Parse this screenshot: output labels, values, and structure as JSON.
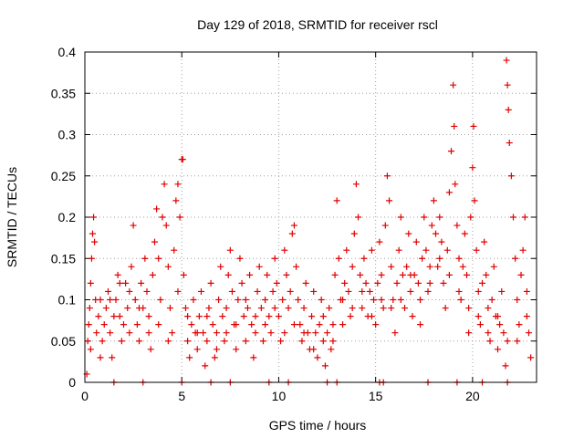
{
  "chart_data": {
    "type": "scatter",
    "title": "Day 129 of 2018, SRMTID for receiver rscl",
    "xlabel": "GPS time / hours",
    "ylabel": "SRMTID / TECUs",
    "xlim": [
      0,
      23.3
    ],
    "ylim": [
      0,
      0.4
    ],
    "x_ticks": [
      0,
      5,
      10,
      15,
      20
    ],
    "x_tick_labels": [
      "0",
      "5",
      "10",
      "15",
      "20"
    ],
    "y_ticks": [
      0,
      0.05,
      0.1,
      0.15,
      0.2,
      0.25,
      0.3,
      0.35,
      0.4
    ],
    "y_tick_labels": [
      "0",
      "0.05",
      "0.1",
      "0.15",
      "0.2",
      "0.25",
      "0.3",
      "0.35",
      "0.4"
    ],
    "grid": true,
    "marker": "plus",
    "color": "#e00000",
    "points": [
      [
        0.1,
        0.01
      ],
      [
        0.15,
        0.05
      ],
      [
        0.2,
        0.07
      ],
      [
        0.25,
        0.09
      ],
      [
        0.3,
        0.12
      ],
      [
        0.35,
        0.15
      ],
      [
        0.4,
        0.18
      ],
      [
        0.45,
        0.2
      ],
      [
        0.5,
        0.17
      ],
      [
        0.55,
        0.1
      ],
      [
        0.6,
        0.06
      ],
      [
        0.7,
        0.08
      ],
      [
        0.8,
        0.1
      ],
      [
        0.9,
        0.05
      ],
      [
        1.0,
        0.07
      ],
      [
        1.1,
        0.09
      ],
      [
        1.2,
        0.11
      ],
      [
        1.3,
        0.06
      ],
      [
        1.4,
        0.03
      ],
      [
        1.5,
        0.08
      ],
      [
        1.6,
        0.1
      ],
      [
        1.7,
        0.13
      ],
      [
        1.8,
        0.08
      ],
      [
        1.9,
        0.05
      ],
      [
        2.0,
        0.07
      ],
      [
        2.1,
        0.12
      ],
      [
        2.2,
        0.09
      ],
      [
        2.3,
        0.06
      ],
      [
        2.4,
        0.14
      ],
      [
        2.5,
        0.19
      ],
      [
        2.6,
        0.1
      ],
      [
        2.7,
        0.07
      ],
      [
        2.8,
        0.05
      ],
      [
        2.9,
        0.12
      ],
      [
        3.0,
        0.09
      ],
      [
        3.1,
        0.15
      ],
      [
        3.2,
        0.11
      ],
      [
        3.3,
        0.08
      ],
      [
        3.4,
        0.04
      ],
      [
        3.5,
        0.13
      ],
      [
        3.6,
        0.17
      ],
      [
        3.7,
        0.21
      ],
      [
        3.8,
        0.15
      ],
      [
        3.9,
        0.1
      ],
      [
        4.0,
        0.2
      ],
      [
        4.1,
        0.24
      ],
      [
        4.2,
        0.19
      ],
      [
        4.3,
        0.14
      ],
      [
        4.4,
        0.09
      ],
      [
        4.5,
        0.06
      ],
      [
        4.6,
        0.16
      ],
      [
        4.7,
        0.22
      ],
      [
        4.8,
        0.24
      ],
      [
        4.9,
        0.2
      ],
      [
        5.0,
        0.27
      ],
      [
        5.05,
        0.27
      ],
      [
        5.1,
        0.13
      ],
      [
        5.2,
        0.09
      ],
      [
        5.3,
        0.05
      ],
      [
        5.4,
        0.03
      ],
      [
        5.5,
        0.07
      ],
      [
        5.6,
        0.1
      ],
      [
        5.7,
        0.06
      ],
      [
        5.8,
        0.04
      ],
      [
        5.9,
        0.08
      ],
      [
        6.0,
        0.11
      ],
      [
        6.1,
        0.06
      ],
      [
        6.2,
        0.02
      ],
      [
        6.3,
        0.05
      ],
      [
        6.4,
        0.09
      ],
      [
        6.5,
        0.12
      ],
      [
        6.6,
        0.07
      ],
      [
        6.7,
        0.03
      ],
      [
        6.8,
        0.06
      ],
      [
        6.9,
        0.1
      ],
      [
        7.0,
        0.14
      ],
      [
        7.1,
        0.08
      ],
      [
        7.2,
        0.05
      ],
      [
        7.3,
        0.09
      ],
      [
        7.4,
        0.13
      ],
      [
        7.5,
        0.16
      ],
      [
        7.6,
        0.11
      ],
      [
        7.7,
        0.07
      ],
      [
        7.8,
        0.04
      ],
      [
        7.9,
        0.1
      ],
      [
        8.0,
        0.15
      ],
      [
        8.1,
        0.12
      ],
      [
        8.2,
        0.08
      ],
      [
        8.3,
        0.05
      ],
      [
        8.4,
        0.09
      ],
      [
        8.5,
        0.13
      ],
      [
        8.6,
        0.07
      ],
      [
        8.7,
        0.03
      ],
      [
        8.8,
        0.06
      ],
      [
        8.9,
        0.11
      ],
      [
        9.0,
        0.14
      ],
      [
        9.1,
        0.09
      ],
      [
        9.2,
        0.05
      ],
      [
        9.3,
        0.1
      ],
      [
        9.4,
        0.13
      ],
      [
        9.5,
        0.08
      ],
      [
        9.6,
        0.06
      ],
      [
        9.7,
        0.11
      ],
      [
        9.8,
        0.15
      ],
      [
        9.9,
        0.12
      ],
      [
        10.0,
        0.08
      ],
      [
        10.1,
        0.05
      ],
      [
        10.2,
        0.1
      ],
      [
        10.3,
        0.16
      ],
      [
        10.4,
        0.13
      ],
      [
        10.5,
        0.09
      ],
      [
        10.6,
        0.11
      ],
      [
        10.7,
        0.18
      ],
      [
        10.8,
        0.19
      ],
      [
        10.9,
        0.14
      ],
      [
        11.0,
        0.1
      ],
      [
        11.1,
        0.07
      ],
      [
        11.2,
        0.05
      ],
      [
        11.3,
        0.09
      ],
      [
        11.4,
        0.12
      ],
      [
        11.5,
        0.06
      ],
      [
        11.6,
        0.04
      ],
      [
        11.7,
        0.08
      ],
      [
        11.8,
        0.11
      ],
      [
        11.9,
        0.06
      ],
      [
        12.0,
        0.03
      ],
      [
        12.1,
        0.07
      ],
      [
        12.2,
        0.1
      ],
      [
        12.3,
        0.05
      ],
      [
        12.4,
        0.02
      ],
      [
        12.5,
        0.06
      ],
      [
        12.6,
        0.09
      ],
      [
        12.7,
        0.04
      ],
      [
        12.8,
        0.07
      ],
      [
        12.9,
        0.13
      ],
      [
        13.0,
        0.22
      ],
      [
        13.1,
        0.15
      ],
      [
        13.2,
        0.1
      ],
      [
        13.3,
        0.07
      ],
      [
        13.4,
        0.12
      ],
      [
        13.5,
        0.16
      ],
      [
        13.6,
        0.11
      ],
      [
        13.7,
        0.08
      ],
      [
        13.8,
        0.14
      ],
      [
        13.9,
        0.18
      ],
      [
        14.0,
        0.24
      ],
      [
        14.1,
        0.2
      ],
      [
        14.2,
        0.13
      ],
      [
        14.3,
        0.09
      ],
      [
        14.4,
        0.15
      ],
      [
        14.5,
        0.12
      ],
      [
        14.6,
        0.08
      ],
      [
        14.7,
        0.11
      ],
      [
        14.8,
        0.16
      ],
      [
        14.9,
        0.1
      ],
      [
        15.0,
        0.07
      ],
      [
        15.1,
        0.12
      ],
      [
        15.2,
        0.17
      ],
      [
        15.3,
        0.13
      ],
      [
        15.4,
        0.09
      ],
      [
        15.5,
        0.19
      ],
      [
        15.6,
        0.25
      ],
      [
        15.7,
        0.22
      ],
      [
        15.8,
        0.14
      ],
      [
        15.9,
        0.1
      ],
      [
        16.0,
        0.06
      ],
      [
        16.1,
        0.12
      ],
      [
        16.2,
        0.16
      ],
      [
        16.3,
        0.2
      ],
      [
        16.4,
        0.13
      ],
      [
        16.5,
        0.09
      ],
      [
        16.6,
        0.14
      ],
      [
        16.7,
        0.18
      ],
      [
        16.8,
        0.11
      ],
      [
        16.9,
        0.08
      ],
      [
        17.0,
        0.13
      ],
      [
        17.1,
        0.17
      ],
      [
        17.2,
        0.12
      ],
      [
        17.3,
        0.07
      ],
      [
        17.4,
        0.15
      ],
      [
        17.5,
        0.2
      ],
      [
        17.6,
        0.16
      ],
      [
        17.7,
        0.11
      ],
      [
        17.8,
        0.14
      ],
      [
        17.9,
        0.19
      ],
      [
        18.0,
        0.22
      ],
      [
        18.1,
        0.18
      ],
      [
        18.2,
        0.14
      ],
      [
        18.3,
        0.2
      ],
      [
        18.4,
        0.17
      ],
      [
        18.5,
        0.12
      ],
      [
        18.6,
        0.09
      ],
      [
        18.7,
        0.16
      ],
      [
        18.8,
        0.23
      ],
      [
        18.9,
        0.28
      ],
      [
        19.0,
        0.36
      ],
      [
        19.05,
        0.31
      ],
      [
        19.1,
        0.24
      ],
      [
        19.2,
        0.19
      ],
      [
        19.3,
        0.15
      ],
      [
        19.4,
        0.1
      ],
      [
        19.5,
        0.14
      ],
      [
        19.6,
        0.18
      ],
      [
        19.7,
        0.13
      ],
      [
        19.8,
        0.09
      ],
      [
        19.9,
        0.2
      ],
      [
        20.0,
        0.26
      ],
      [
        20.05,
        0.31
      ],
      [
        20.1,
        0.22
      ],
      [
        20.2,
        0.16
      ],
      [
        20.3,
        0.11
      ],
      [
        20.4,
        0.07
      ],
      [
        20.5,
        0.12
      ],
      [
        20.6,
        0.17
      ],
      [
        20.7,
        0.13
      ],
      [
        20.8,
        0.09
      ],
      [
        20.9,
        0.05
      ],
      [
        21.0,
        0.1
      ],
      [
        21.1,
        0.14
      ],
      [
        21.2,
        0.08
      ],
      [
        21.3,
        0.04
      ],
      [
        21.4,
        0.07
      ],
      [
        21.5,
        0.11
      ],
      [
        21.6,
        0.06
      ],
      [
        21.7,
        0.02
      ],
      [
        21.75,
        0.39
      ],
      [
        21.8,
        0.36
      ],
      [
        21.85,
        0.33
      ],
      [
        21.9,
        0.29
      ],
      [
        22.0,
        0.25
      ],
      [
        22.1,
        0.2
      ],
      [
        22.2,
        0.15
      ],
      [
        22.3,
        0.1
      ],
      [
        22.4,
        0.07
      ],
      [
        22.5,
        0.13
      ],
      [
        22.6,
        0.16
      ],
      [
        22.7,
        0.2
      ],
      [
        22.8,
        0.11
      ],
      [
        22.9,
        0.06
      ],
      [
        23.0,
        0.03
      ],
      [
        0.3,
        0.04
      ],
      [
        0.8,
        0.03
      ],
      [
        1.3,
        0.1
      ],
      [
        1.8,
        0.12
      ],
      [
        2.3,
        0.11
      ],
      [
        2.8,
        0.09
      ],
      [
        3.3,
        0.06
      ],
      [
        3.8,
        0.07
      ],
      [
        4.3,
        0.05
      ],
      [
        4.8,
        0.11
      ],
      [
        5.3,
        0.08
      ],
      [
        5.8,
        0.06
      ],
      [
        6.3,
        0.08
      ],
      [
        6.8,
        0.04
      ],
      [
        7.3,
        0.06
      ],
      [
        7.8,
        0.07
      ],
      [
        8.3,
        0.1
      ],
      [
        8.8,
        0.08
      ],
      [
        9.3,
        0.07
      ],
      [
        9.8,
        0.09
      ],
      [
        10.3,
        0.06
      ],
      [
        10.8,
        0.07
      ],
      [
        11.3,
        0.06
      ],
      [
        11.8,
        0.04
      ],
      [
        12.3,
        0.08
      ],
      [
        12.8,
        0.05
      ],
      [
        13.3,
        0.1
      ],
      [
        13.8,
        0.09
      ],
      [
        14.3,
        0.11
      ],
      [
        14.8,
        0.08
      ],
      [
        15.3,
        0.1
      ],
      [
        15.8,
        0.09
      ],
      [
        16.3,
        0.1
      ],
      [
        16.8,
        0.13
      ],
      [
        17.3,
        0.1
      ],
      [
        17.8,
        0.12
      ],
      [
        18.3,
        0.15
      ],
      [
        18.8,
        0.13
      ],
      [
        19.3,
        0.11
      ],
      [
        19.8,
        0.06
      ],
      [
        20.3,
        0.08
      ],
      [
        20.8,
        0.06
      ],
      [
        21.3,
        0.08
      ],
      [
        21.8,
        0.05
      ],
      [
        22.3,
        0.05
      ],
      [
        22.8,
        0.08
      ],
      [
        1.5,
        0
      ],
      [
        3.0,
        0
      ],
      [
        5.0,
        0
      ],
      [
        6.5,
        0
      ],
      [
        7.5,
        0
      ],
      [
        9.5,
        0
      ],
      [
        10.5,
        0
      ],
      [
        12.5,
        0
      ],
      [
        13.0,
        0
      ],
      [
        15.2,
        0
      ],
      [
        15.4,
        0
      ],
      [
        17.7,
        0
      ],
      [
        19.2,
        0
      ],
      [
        20.5,
        0
      ],
      [
        21.8,
        0
      ]
    ]
  }
}
